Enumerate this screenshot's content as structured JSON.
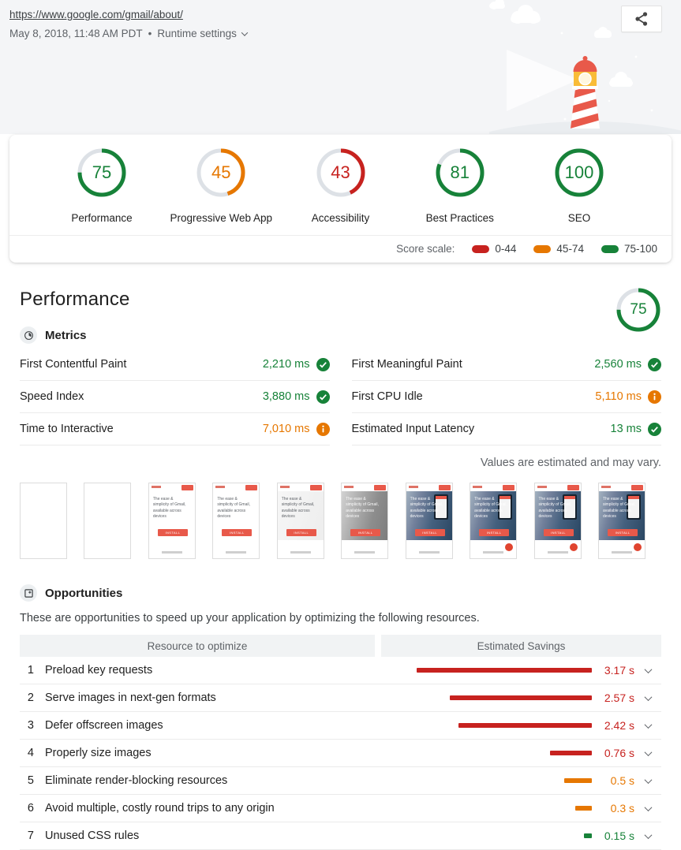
{
  "colors": {
    "pass": "#178239",
    "average": "#e67700",
    "fail": "#c7221f",
    "track": "#dde1e6"
  },
  "header": {
    "url": "https://www.google.com/gmail/about/",
    "timestamp": "May 8, 2018, 11:48 AM PDT",
    "separator": "•",
    "runtime_settings_label": "Runtime settings"
  },
  "scores": [
    {
      "label": "Performance",
      "value": 75,
      "severity": "pass"
    },
    {
      "label": "Progressive Web App",
      "value": 45,
      "severity": "average"
    },
    {
      "label": "Accessibility",
      "value": 43,
      "severity": "fail"
    },
    {
      "label": "Best Practices",
      "value": 81,
      "severity": "pass"
    },
    {
      "label": "SEO",
      "value": 100,
      "severity": "pass"
    }
  ],
  "score_scale": {
    "label": "Score scale:",
    "ranges": [
      {
        "label": "0-44",
        "severity": "fail"
      },
      {
        "label": "45-74",
        "severity": "average"
      },
      {
        "label": "75-100",
        "severity": "pass"
      }
    ]
  },
  "performance": {
    "title": "Performance",
    "score": 75,
    "score_severity": "pass",
    "metrics_heading": "Metrics",
    "metrics_left": [
      {
        "label": "First Contentful Paint",
        "value": "2,210 ms",
        "severity": "pass"
      },
      {
        "label": "Speed Index",
        "value": "3,880 ms",
        "severity": "pass"
      },
      {
        "label": "Time to Interactive",
        "value": "7,010 ms",
        "severity": "average"
      }
    ],
    "metrics_right": [
      {
        "label": "First Meaningful Paint",
        "value": "2,560 ms",
        "severity": "pass"
      },
      {
        "label": "First CPU Idle",
        "value": "5,110 ms",
        "severity": "average"
      },
      {
        "label": "Estimated Input Latency",
        "value": "13 ms",
        "severity": "pass"
      }
    ],
    "note": "Values are estimated and may vary.",
    "filmstrip": {
      "frames": [
        "blank",
        "blank",
        "page",
        "page",
        "page-faded",
        "photo-gray",
        "photo",
        "photo-fab",
        "photo-fab",
        "photo-fab"
      ],
      "page_text": "The ease & simplicity of Gmail, available across devices",
      "install_label": "INSTALL"
    }
  },
  "opportunities": {
    "heading": "Opportunities",
    "description": "These are opportunities to speed up your application by optimizing the following resources.",
    "columns": {
      "resource": "Resource to optimize",
      "savings": "Estimated Savings"
    },
    "rows": [
      {
        "num": "1",
        "label": "Preload key requests",
        "savings_seconds": 3.17,
        "savings_label": "3.17 s",
        "severity": "fail"
      },
      {
        "num": "2",
        "label": "Serve images in next-gen formats",
        "savings_seconds": 2.57,
        "savings_label": "2.57 s",
        "severity": "fail"
      },
      {
        "num": "3",
        "label": "Defer offscreen images",
        "savings_seconds": 2.42,
        "savings_label": "2.42 s",
        "severity": "fail"
      },
      {
        "num": "4",
        "label": "Properly size images",
        "savings_seconds": 0.76,
        "savings_label": "0.76 s",
        "severity": "fail"
      },
      {
        "num": "5",
        "label": "Eliminate render-blocking resources",
        "savings_seconds": 0.5,
        "savings_label": "0.5 s",
        "severity": "average"
      },
      {
        "num": "6",
        "label": "Avoid multiple, costly round trips to any origin",
        "savings_seconds": 0.3,
        "savings_label": "0.3 s",
        "severity": "average"
      },
      {
        "num": "7",
        "label": "Unused CSS rules",
        "savings_seconds": 0.15,
        "savings_label": "0.15 s",
        "severity": "pass"
      }
    ]
  }
}
